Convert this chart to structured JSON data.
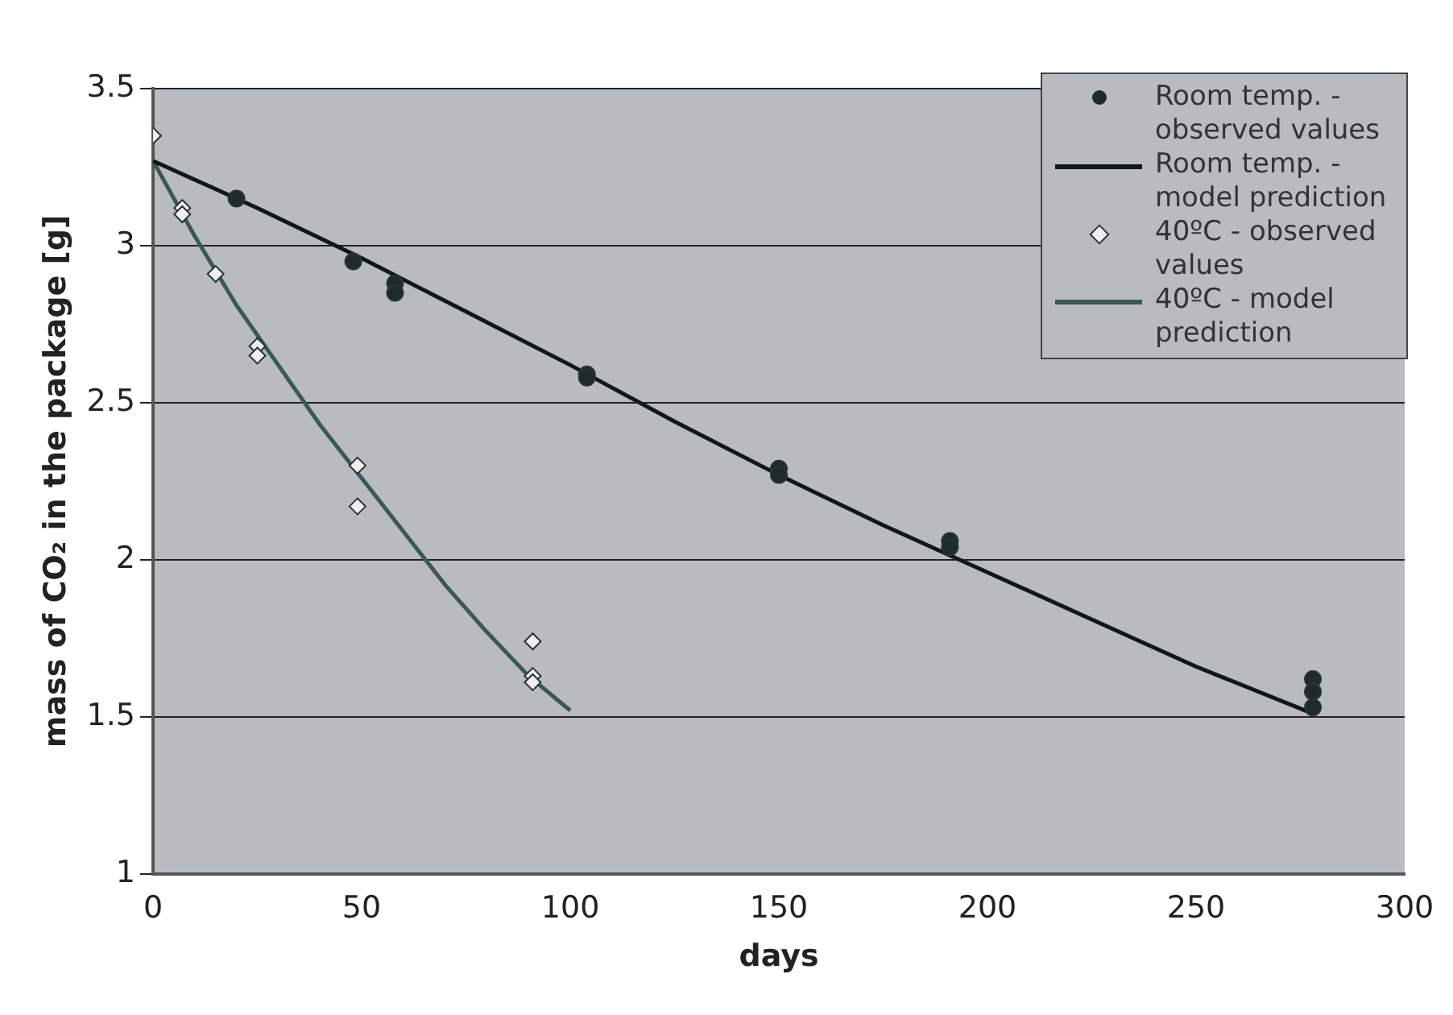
{
  "chart_data": {
    "type": "scatter",
    "xlabel": "days",
    "ylabel": "mass of CO₂ in the package [g]",
    "xlim": [
      0,
      300
    ],
    "xticks": [
      0,
      50,
      100,
      150,
      200,
      250,
      300
    ],
    "ylim": [
      1,
      3.5
    ],
    "yticks": [
      1,
      1.5,
      2,
      2.5,
      3,
      3.5
    ],
    "grid": "y",
    "legend": "top right",
    "line_style": "solid",
    "series": [
      {
        "name": "Room temp. - observed values",
        "marker": "circle",
        "color": "#1f2b2b",
        "x": [
          20,
          48,
          58,
          58,
          104,
          104,
          150,
          150,
          191,
          191,
          278,
          278,
          278
        ],
        "values": [
          3.15,
          2.95,
          2.88,
          2.85,
          2.59,
          2.58,
          2.29,
          2.27,
          2.06,
          2.04,
          1.62,
          1.58,
          1.53
        ]
      },
      {
        "name": "Room temp. - model prediction",
        "type": "line",
        "marker": "none",
        "color": "#111818",
        "x": [
          0,
          25,
          50,
          75,
          100,
          125,
          150,
          175,
          200,
          225,
          250,
          278
        ],
        "values": [
          3.27,
          3.12,
          2.96,
          2.79,
          2.62,
          2.44,
          2.27,
          2.11,
          1.96,
          1.81,
          1.66,
          1.51
        ]
      },
      {
        "name": "40ºC - observed values",
        "marker": "diamond",
        "color": "#eef0f0",
        "x": [
          0,
          7,
          7,
          15,
          25,
          25,
          49,
          49,
          91,
          91,
          91
        ],
        "values": [
          3.35,
          3.12,
          3.1,
          2.91,
          2.68,
          2.65,
          2.3,
          2.17,
          1.74,
          1.63,
          1.61
        ]
      },
      {
        "name": "40ºC - model prediction",
        "type": "line",
        "marker": "none",
        "color": "#3d5757",
        "x": [
          0,
          10,
          20,
          30,
          40,
          50,
          60,
          70,
          80,
          90,
          100
        ],
        "values": [
          3.27,
          3.03,
          2.81,
          2.62,
          2.43,
          2.26,
          2.09,
          1.92,
          1.77,
          1.63,
          1.52
        ]
      }
    ]
  }
}
